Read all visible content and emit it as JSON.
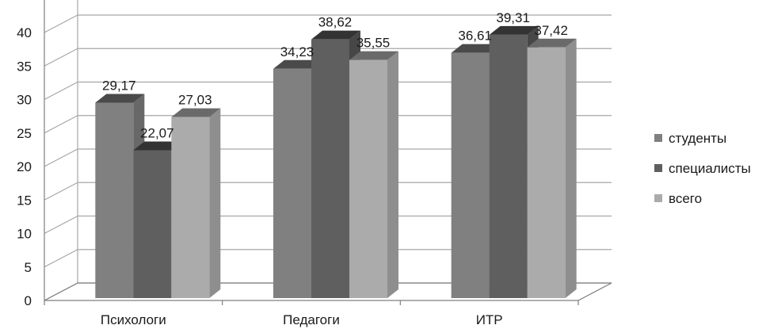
{
  "chart_data": {
    "type": "bar",
    "categories": [
      "Психологи",
      "Педагоги",
      "ИТР"
    ],
    "series": [
      {
        "name": "студенты",
        "values": [
          29.17,
          34.23,
          36.61
        ]
      },
      {
        "name": "специалисты",
        "values": [
          22.07,
          38.62,
          39.31
        ]
      },
      {
        "name": "всего",
        "values": [
          27.03,
          35.55,
          37.42
        ]
      }
    ],
    "data_labels": [
      [
        "29,17",
        "34,23",
        "36,61"
      ],
      [
        "22,07",
        "38,62",
        "39,31"
      ],
      [
        "27,03",
        "35,55",
        "37,42"
      ]
    ],
    "y_ticks": [
      "0",
      "5",
      "10",
      "15",
      "20",
      "25",
      "30",
      "35",
      "40"
    ],
    "ylim": [
      0,
      45
    ],
    "three_d": true,
    "grid": true,
    "legend_position": "right",
    "colors": {
      "series_front": [
        "#808080",
        "#5f5f5f",
        "#ababab"
      ],
      "series_side": [
        "#686868",
        "#474747",
        "#8e8e8e"
      ],
      "series_top": [
        "#4a4a4a",
        "#333333",
        "#6a6a6a"
      ],
      "grid": "#a6a6a6",
      "axis": "#7f7f7f"
    }
  }
}
